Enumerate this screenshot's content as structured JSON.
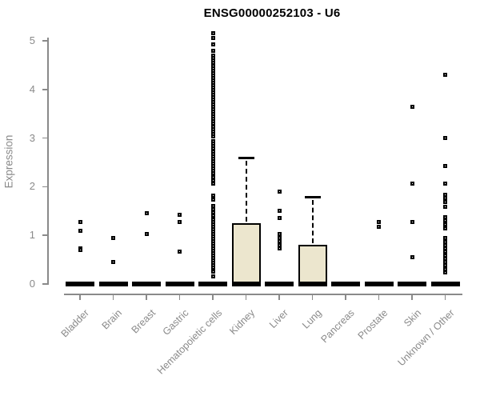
{
  "chart_data": {
    "type": "boxplot",
    "title": "ENSG00000252103 - U6",
    "ylabel": "Expression",
    "ylim": [
      0,
      5
    ],
    "yticks": [
      0,
      1,
      2,
      3,
      4,
      5
    ],
    "grid": false,
    "legend": null,
    "title_color": "#000000",
    "axis_color": "#8a8a8a",
    "box_fill_color": "#ece6ce",
    "box_line_color": "#000000",
    "point_color": "#000000",
    "categories": [
      {
        "label": "Bladder",
        "box": {
          "q1": 0,
          "median": 0,
          "q3": 0,
          "whisker_low": 0,
          "whisker_high": 0
        },
        "outliers": [
          1.27,
          1.1,
          0.73,
          0.7
        ]
      },
      {
        "label": "Brain",
        "box": {
          "q1": 0,
          "median": 0,
          "q3": 0,
          "whisker_low": 0,
          "whisker_high": 0
        },
        "outliers": [
          0.95,
          0.45
        ]
      },
      {
        "label": "Breast",
        "box": {
          "q1": 0,
          "median": 0,
          "q3": 0,
          "whisker_low": 0,
          "whisker_high": 0
        },
        "outliers": [
          1.45,
          1.02
        ]
      },
      {
        "label": "Gastric",
        "box": {
          "q1": 0,
          "median": 0,
          "q3": 0,
          "whisker_low": 0,
          "whisker_high": 0
        },
        "outliers": [
          1.43,
          1.28,
          0.67
        ]
      },
      {
        "label": "Hematopoietic cells",
        "box": {
          "q1": 0,
          "median": 0,
          "q3": 0,
          "whisker_low": 0,
          "whisker_high": 0
        },
        "outliers": [
          5.15,
          5.05,
          4.93,
          4.8,
          4.69,
          4.64,
          4.59,
          4.54,
          4.49,
          4.44,
          4.39,
          4.34,
          4.29,
          4.24,
          4.19,
          4.14,
          4.09,
          4.04,
          3.99,
          3.94,
          3.89,
          3.84,
          3.79,
          3.74,
          3.7,
          3.65,
          3.59,
          3.54,
          3.49,
          3.44,
          3.39,
          3.34,
          3.29,
          3.24,
          3.19,
          3.14,
          3.09,
          3.04,
          2.93,
          2.88,
          2.83,
          2.78,
          2.73,
          2.68,
          2.63,
          2.58,
          2.53,
          2.48,
          2.43,
          2.38,
          2.33,
          2.27,
          2.2,
          2.13,
          2.06,
          1.81,
          1.73,
          1.61,
          1.54,
          1.47,
          1.4,
          1.33,
          1.27,
          1.23,
          1.18,
          1.13,
          1.08,
          1.03,
          0.98,
          0.93,
          0.88,
          0.83,
          0.78,
          0.73,
          0.68,
          0.63,
          0.58,
          0.53,
          0.48,
          0.43,
          0.38,
          0.33,
          0.25,
          0.16
        ]
      },
      {
        "label": "Kidney",
        "box": {
          "q1": 0,
          "median": 0,
          "q3": 1.25,
          "whisker_low": 0,
          "whisker_high": 2.6
        },
        "outliers": []
      },
      {
        "label": "Liver",
        "box": {
          "q1": 0,
          "median": 0,
          "q3": 0,
          "whisker_low": 0,
          "whisker_high": 0
        },
        "outliers": [
          1.9,
          1.5,
          1.35,
          1.02,
          0.95,
          0.88,
          0.8,
          0.73
        ]
      },
      {
        "label": "Lung",
        "box": {
          "q1": 0,
          "median": 0,
          "q3": 0.8,
          "whisker_low": 0,
          "whisker_high": 1.8
        },
        "outliers": []
      },
      {
        "label": "Pancreas",
        "box": {
          "q1": 0,
          "median": 0,
          "q3": 0,
          "whisker_low": 0,
          "whisker_high": 0
        },
        "outliers": []
      },
      {
        "label": "Prostate",
        "box": {
          "q1": 0,
          "median": 0,
          "q3": 0,
          "whisker_low": 0,
          "whisker_high": 0
        },
        "outliers": [
          1.28,
          1.18
        ]
      },
      {
        "label": "Skin",
        "box": {
          "q1": 0,
          "median": 0,
          "q3": 0,
          "whisker_low": 0,
          "whisker_high": 0
        },
        "outliers": [
          3.65,
          2.06,
          1.27,
          0.55
        ]
      },
      {
        "label": "Unknown / Other",
        "box": {
          "q1": 0,
          "median": 0,
          "q3": 0,
          "whisker_low": 0,
          "whisker_high": 0
        },
        "outliers": [
          4.3,
          3.0,
          2.43,
          2.06,
          1.83,
          1.76,
          1.69,
          1.58,
          1.38,
          1.3,
          1.22,
          1.14,
          0.94,
          0.87,
          0.8,
          0.73,
          0.66,
          0.59,
          0.52,
          0.45,
          0.38,
          0.31,
          0.24
        ]
      }
    ]
  }
}
